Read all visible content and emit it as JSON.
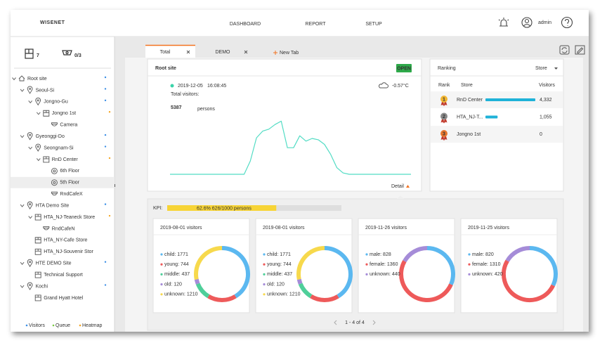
{
  "header": {
    "logo": "WISENET",
    "nav": [
      "DASHBOARD",
      "REPORT",
      "SETUP"
    ],
    "active_nav": 0,
    "user": "admin"
  },
  "sidebar": {
    "doors": 7,
    "queue": "0/3",
    "tree": [
      {
        "label": "Root site",
        "depth": 0,
        "icon": "site",
        "expand": true
      },
      {
        "label": "Seoul-Si",
        "depth": 1,
        "icon": "location",
        "expand": true
      },
      {
        "label": "Jongno-Gu",
        "depth": 2,
        "icon": "location",
        "expand": true
      },
      {
        "label": "Jongno 1st",
        "depth": 3,
        "icon": "store",
        "expand": true
      },
      {
        "label": "Camera",
        "depth": 4,
        "icon": "camera",
        "expand": false
      },
      {
        "label": "Gyeonggi-Do",
        "depth": 1,
        "icon": "location",
        "expand": true
      },
      {
        "label": "Seongnam-Si",
        "depth": 2,
        "icon": "location",
        "expand": true
      },
      {
        "label": "RnD Center",
        "depth": 3,
        "icon": "store",
        "expand": true
      },
      {
        "label": "6th Floor",
        "depth": 4,
        "icon": "floor",
        "expand": false
      },
      {
        "label": "5th Floor",
        "depth": 4,
        "icon": "floor",
        "expand": false
      },
      {
        "label": "RndCafeX",
        "depth": 4,
        "icon": "camera",
        "expand": false
      },
      {
        "label": "HTA Demo Site",
        "depth": 1,
        "icon": "location",
        "expand": true
      },
      {
        "label": "HTA_NJ-Teaneck Store",
        "depth": 2,
        "icon": "store",
        "expand": true
      },
      {
        "label": "RndCafeN",
        "depth": 3,
        "icon": "camera",
        "expand": false
      },
      {
        "label": "HTA_NY-Cafe Store",
        "depth": 2,
        "icon": "store",
        "expand": false
      },
      {
        "label": "HTA_NJ-Souvenir Stor",
        "depth": 2,
        "icon": "store",
        "expand": false
      },
      {
        "label": "HTE DEMO Site",
        "depth": 1,
        "icon": "location",
        "expand": true
      },
      {
        "label": "Technical Support",
        "depth": 2,
        "icon": "store",
        "expand": false
      },
      {
        "label": "Kochi",
        "depth": 1,
        "icon": "location",
        "expand": true
      },
      {
        "label": "Grand Hyatt Hotel",
        "depth": 2,
        "icon": "store",
        "expand": false
      }
    ],
    "selected": 9,
    "legend": [
      {
        "label": "Visitors",
        "color": "#3a8ee6"
      },
      {
        "label": "Queue",
        "color": "#7ac943"
      },
      {
        "label": "Heatmap",
        "color": "#f5a623"
      }
    ]
  },
  "tabs": {
    "items": [
      "Total",
      "DEMO"
    ],
    "active": 0,
    "new_tab": "New Tab"
  },
  "site": {
    "title": "Root site",
    "badge": "OPEN",
    "date": "2019-12-05",
    "time": "16:08:45",
    "weather": "-0.57°C",
    "label": "Total visitors:",
    "count": 5387,
    "unit": "persons",
    "detail": "Detail",
    "line": {
      "values": [
        0,
        0,
        0,
        0,
        0,
        0,
        0,
        0,
        0,
        0,
        0,
        0,
        0,
        20,
        55,
        65,
        68,
        75,
        80,
        40,
        40,
        58,
        50,
        54,
        52,
        45,
        30,
        10,
        2,
        0,
        0,
        0,
        0,
        0,
        0,
        0,
        0,
        0,
        0,
        0
      ],
      "ylim": [
        0,
        90
      ],
      "color": "#52dcc4"
    }
  },
  "ranking": {
    "title": "Ranking",
    "dropdown": "Store",
    "headers": [
      "Rank",
      "Store",
      "Visitors"
    ],
    "bar_color": "#1fb2d8",
    "rows": [
      {
        "rank": 1,
        "store": "RnD Center",
        "visitors": {
          "value": 4332,
          "label": "4,332"
        },
        "medal": "#f2b632"
      },
      {
        "rank": 2,
        "store": "HTA_NJ-T...",
        "visitors": {
          "value": 1055,
          "label": "1,055"
        },
        "medal": "#8a8a8a"
      },
      {
        "rank": 3,
        "store": "Jongno 1st",
        "visitors": {
          "value": 0,
          "label": "0"
        },
        "medal": "#e8772e"
      }
    ]
  },
  "kpi": {
    "label": "KPI:",
    "value": 62.6,
    "bar_label": "62.6% 626/1000 persons",
    "color": "#f7d436"
  },
  "cards": [
    {
      "title": "2019-08-01 visitors",
      "items": [
        {
          "label": "child: 1771",
          "value": 1771,
          "color": "#5bb8f0"
        },
        {
          "label": "young: 744",
          "value": 744,
          "color": "#ee5a5a"
        },
        {
          "label": "middle: 437",
          "value": 437,
          "color": "#4fcf9a"
        },
        {
          "label": "old: 120",
          "value": 120,
          "color": "#a58cd8"
        },
        {
          "label": "unknown: 1210",
          "value": 1210,
          "color": "#f7d94c"
        }
      ]
    },
    {
      "title": "2019-08-01 visitors",
      "items": [
        {
          "label": "child: 1771",
          "value": 1771,
          "color": "#5bb8f0"
        },
        {
          "label": "young: 744",
          "value": 744,
          "color": "#ee5a5a"
        },
        {
          "label": "middle: 437",
          "value": 437,
          "color": "#4fcf9a"
        },
        {
          "label": "old: 120",
          "value": 120,
          "color": "#a58cd8"
        },
        {
          "label": "unknown: 1210",
          "value": 1210,
          "color": "#f7d94c"
        }
      ]
    },
    {
      "title": "2019-11-26 visitors",
      "items": [
        {
          "label": "male: 828",
          "value": 828,
          "color": "#5bb8f0"
        },
        {
          "label": "female: 1360",
          "value": 1360,
          "color": "#ee5a5a"
        },
        {
          "label": "unknown: 440",
          "value": 440,
          "color": "#a58cd8"
        }
      ]
    },
    {
      "title": "2019-11-25 visitors",
      "items": [
        {
          "label": "male: 820",
          "value": 820,
          "color": "#5bb8f0"
        },
        {
          "label": "female: 1310",
          "value": 1310,
          "color": "#ee5a5a"
        },
        {
          "label": "unknown: 420",
          "value": 420,
          "color": "#a58cd8"
        }
      ]
    }
  ],
  "pagination": "1 - 4 of 4"
}
